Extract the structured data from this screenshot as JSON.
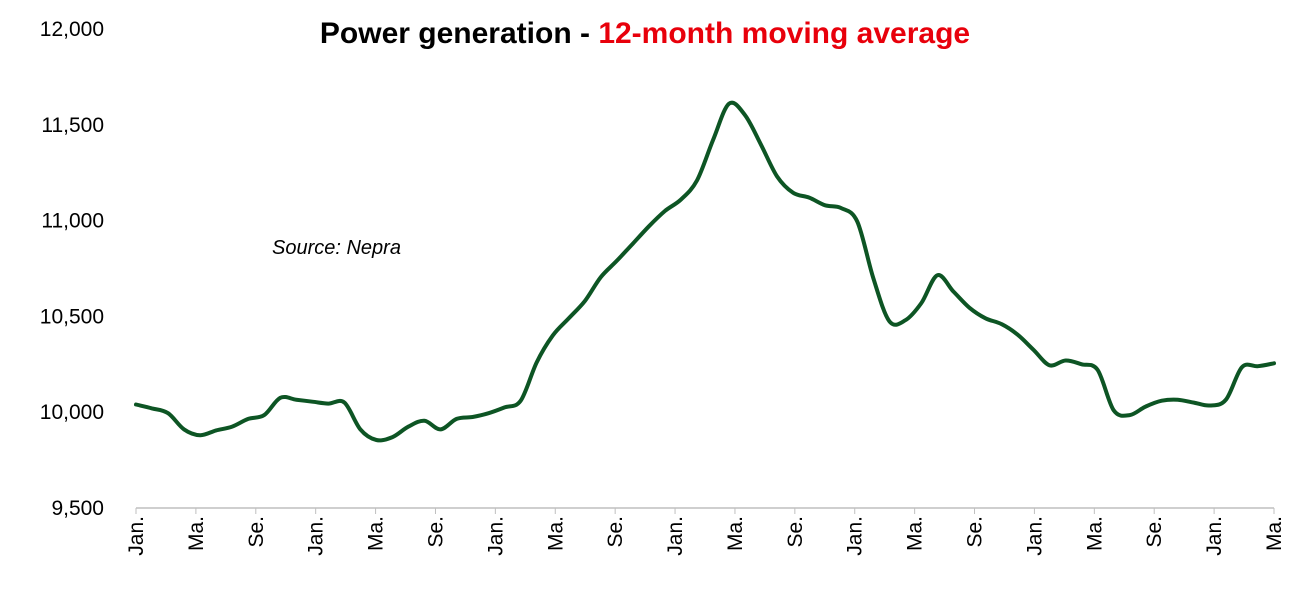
{
  "chart_data": {
    "type": "line",
    "title_part1": "Power generation - ",
    "title_part2": "12-month moving average",
    "annotation": "Source: Nepra",
    "ylim": [
      9500,
      12000
    ],
    "ytick_values": [
      9500,
      10000,
      10500,
      11000,
      11500,
      12000
    ],
    "ytick_labels": [
      "9,500",
      "10,000",
      "10,500",
      "11,000",
      "11,500",
      "12,000"
    ],
    "xtick_labels": [
      "Jan.",
      "Ma.",
      "Se.",
      "Jan.",
      "Ma.",
      "Se.",
      "Jan.",
      "Ma.",
      "Se.",
      "Jan.",
      "Ma.",
      "Se.",
      "Jan.",
      "Ma.",
      "Se.",
      "Jan.",
      "Ma.",
      "Se.",
      "Jan.",
      "Ma."
    ],
    "grid": false,
    "legend": "none",
    "colors": {
      "line": "#0d5524",
      "title_accent": "#e8000b",
      "title_main": "#000000",
      "axis": "#bfbfbf"
    },
    "series": [
      {
        "values": [
          10040,
          10020,
          9995,
          9910,
          9880,
          9905,
          9925,
          9965,
          9985,
          10075,
          10065,
          10055,
          10045,
          10050,
          9910,
          9855,
          9870,
          9925,
          9955,
          9910,
          9965,
          9975,
          9995,
          10025,
          10060,
          10260,
          10400,
          10490,
          10580,
          10705,
          10790,
          10880,
          10970,
          11050,
          11110,
          11210,
          11420,
          11610,
          11550,
          11395,
          11230,
          11145,
          11120,
          11080,
          11065,
          10995,
          10700,
          10475,
          10480,
          10570,
          10715,
          10630,
          10545,
          10490,
          10460,
          10405,
          10325,
          10245,
          10270,
          10250,
          10220,
          10010,
          9985,
          10030,
          10060,
          10065,
          10050,
          10035,
          10065,
          10235,
          10240,
          10255
        ]
      }
    ]
  }
}
